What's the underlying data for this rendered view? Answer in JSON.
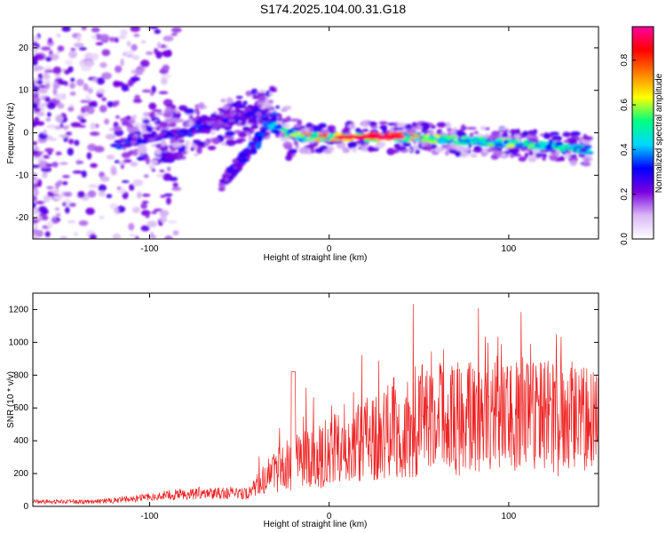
{
  "title": "S174.2025.104.00.31.G18",
  "chart_data": [
    {
      "type": "heatmap",
      "xlabel": "Height of straight line (km)",
      "ylabel": "Frequency (Hz)",
      "xlim": [
        -165,
        150
      ],
      "ylim": [
        -25,
        25
      ],
      "x_ticks": [
        -100,
        0,
        100
      ],
      "y_ticks": [
        -20,
        -10,
        0,
        10,
        20
      ],
      "colorbar": {
        "label": "Normalized spectral amplitude",
        "range": [
          0,
          0.95
        ],
        "ticks": [
          0.0,
          0.2,
          0.4,
          0.6,
          0.8
        ],
        "colormap": [
          "#ffffff",
          "#d9b8f5",
          "#7a00e0",
          "#0000ff",
          "#00d8ff",
          "#00ff80",
          "#ffff00",
          "#ff8000",
          "#ff0000",
          "#ff00a0"
        ]
      },
      "ridge": [
        {
          "x": -120,
          "y": -3,
          "amp": 0.35
        },
        {
          "x": -100,
          "y": -1,
          "amp": 0.3
        },
        {
          "x": -80,
          "y": 0,
          "amp": 0.35
        },
        {
          "x": -60,
          "y": 2,
          "amp": 0.3
        },
        {
          "x": -40,
          "y": 5,
          "amp": 0.3
        },
        {
          "x": -30,
          "y": 1,
          "amp": 0.45
        },
        {
          "x": -15,
          "y": -1,
          "amp": 0.7
        },
        {
          "x": 0,
          "y": -1,
          "amp": 0.8
        },
        {
          "x": 20,
          "y": -1,
          "amp": 0.95
        },
        {
          "x": 40,
          "y": -1,
          "amp": 0.75
        },
        {
          "x": 60,
          "y": -1.5,
          "amp": 0.6
        },
        {
          "x": 80,
          "y": -2,
          "amp": 0.55
        },
        {
          "x": 100,
          "y": -2.5,
          "amp": 0.6
        },
        {
          "x": 120,
          "y": -3,
          "amp": 0.55
        },
        {
          "x": 145,
          "y": -4,
          "amp": 0.5
        }
      ],
      "branch": [
        {
          "x": -60,
          "y": -12,
          "amp": 0.25
        },
        {
          "x": -50,
          "y": -7,
          "amp": 0.3
        },
        {
          "x": -40,
          "y": -2,
          "amp": 0.35
        },
        {
          "x": -30,
          "y": 4,
          "amp": 0.35
        }
      ]
    },
    {
      "type": "line",
      "xlabel": "Height of straight line (km)",
      "ylabel": "SNR (10 * v/v)",
      "xlim": [
        -165,
        150
      ],
      "ylim": [
        0,
        1300
      ],
      "x_ticks": [
        -100,
        0,
        100
      ],
      "y_ticks": [
        0,
        200,
        400,
        600,
        800,
        1000,
        1200
      ],
      "color": "#ee2222",
      "envelope": [
        {
          "x": -165,
          "y": 30
        },
        {
          "x": -130,
          "y": 30
        },
        {
          "x": -110,
          "y": 50
        },
        {
          "x": -80,
          "y": 80
        },
        {
          "x": -60,
          "y": 90
        },
        {
          "x": -45,
          "y": 80
        },
        {
          "x": -35,
          "y": 200
        },
        {
          "x": -25,
          "y": 280
        },
        {
          "x": -10,
          "y": 330
        },
        {
          "x": 0,
          "y": 380
        },
        {
          "x": 15,
          "y": 430
        },
        {
          "x": 30,
          "y": 520
        },
        {
          "x": 50,
          "y": 600
        },
        {
          "x": 80,
          "y": 620
        },
        {
          "x": 100,
          "y": 640
        },
        {
          "x": 130,
          "y": 600
        },
        {
          "x": 150,
          "y": 580
        }
      ]
    }
  ]
}
